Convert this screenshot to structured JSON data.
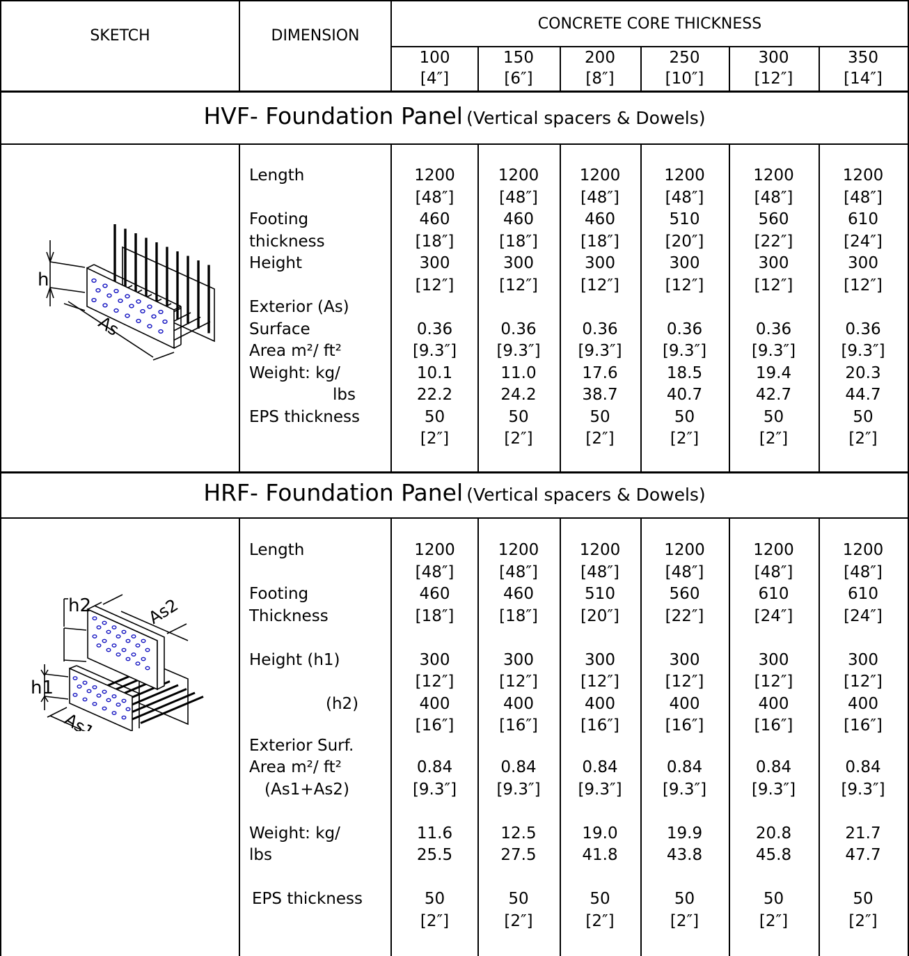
{
  "header": {
    "sketch": "SKETCH",
    "dimension": "DIMENSION",
    "core_thickness": "CONCRETE CORE THICKNESS",
    "thicknesses": [
      {
        "mm": "100",
        "in": "[4″]"
      },
      {
        "mm": "150",
        "in": "[6″]"
      },
      {
        "mm": "200",
        "in": "[8″]"
      },
      {
        "mm": "250",
        "in": "[10″]"
      },
      {
        "mm": "300",
        "in": "[12″]"
      },
      {
        "mm": "350",
        "in": "[14″]"
      }
    ]
  },
  "hvf": {
    "title": "HVF- Foundation Panel",
    "subtitle": "(Vertical spacers & Dowels)",
    "sketch_labels": {
      "h": "h",
      "as": "As"
    },
    "dim_lines": [
      {
        "text": "Length",
        "row": 0
      },
      {
        "text": "Footing",
        "row": 2
      },
      {
        "text": "thickness",
        "row": 3
      },
      {
        "text": "Height",
        "row": 4
      },
      {
        "text": "Exterior   (As)",
        "row": 6
      },
      {
        "text": "Surface",
        "row": 7
      },
      {
        "text": "Area m²/ ft²",
        "row": 8
      },
      {
        "text": "Weight: kg/",
        "row": 9
      },
      {
        "text": "lbs",
        "row": 10,
        "indent": true
      },
      {
        "text": "EPS thickness",
        "row": 11
      }
    ],
    "columns": [
      [
        "1200",
        "[48″]",
        "460",
        "[18″]",
        "300",
        "[12″]",
        "",
        "0.36",
        "[9.3″]",
        "10.1",
        "22.2",
        "50",
        "[2″]"
      ],
      [
        "1200",
        "[48″]",
        "460",
        "[18″]",
        "300",
        "[12″]",
        "",
        "0.36",
        "[9.3″]",
        "11.0",
        "24.2",
        "50",
        "[2″]"
      ],
      [
        "1200",
        "[48″]",
        "460",
        "[18″]",
        "300",
        "[12″]",
        "",
        "0.36",
        "[9.3″]",
        "17.6",
        "38.7",
        "50",
        "[2″]"
      ],
      [
        "1200",
        "[48″]",
        "510",
        "[20″]",
        "300",
        "[12″]",
        "",
        "0.36",
        "[9.3″]",
        "18.5",
        "40.7",
        "50",
        "[2″]"
      ],
      [
        "1200",
        "[48″]",
        "560",
        "[22″]",
        "300",
        "[12″]",
        "",
        "0.36",
        "[9.3″]",
        "19.4",
        "42.7",
        "50",
        "[2″]"
      ],
      [
        "1200",
        "[48″]",
        "610",
        "[24″]",
        "300",
        "[12″]",
        "",
        "0.36",
        "[9.3″]",
        "20.3",
        "44.7",
        "50",
        "[2″]"
      ]
    ]
  },
  "hrf": {
    "title": "HRF- Foundation Panel",
    "subtitle": "(Vertical spacers & Dowels)",
    "sketch_labels": {
      "h1": "h1",
      "h2": "h2",
      "as1": "As1",
      "as2": "As2"
    },
    "dim_lines": [
      {
        "text": "Length",
        "row": 0
      },
      {
        "text": "Footing",
        "row": 2
      },
      {
        "text": "Thickness",
        "row": 3
      },
      {
        "text": "Height  (h1)",
        "row": 5
      },
      {
        "text": "(h2)",
        "row": 7,
        "indent2": true
      },
      {
        "text": "Exterior Surf.",
        "row": 8.92
      },
      {
        "text": "Area m²/ ft²",
        "row": 9.92
      },
      {
        "text": "(As1+As2)",
        "row": 10.92,
        "indent3": true
      },
      {
        "text": "Weight: kg/",
        "row": 12.92
      },
      {
        "text": "lbs",
        "row": 13.92
      },
      {
        "text": "EPS thickness",
        "row": 15.92,
        "indent4": true
      }
    ],
    "columns": [
      {
        "values": [
          "1200",
          "[48″]",
          "460",
          "[18″]",
          "300",
          "[12″]",
          "400",
          "[16″]",
          "0.84",
          "[9.3″]",
          "11.6",
          "25.5",
          "50",
          "[2″]"
        ]
      },
      {
        "values": [
          "1200",
          "[48″]",
          "460",
          "[18″]",
          "300",
          "[12″]",
          "400",
          "[16″]",
          "0.84",
          "[9.3″]",
          "12.5",
          "27.5",
          "50",
          "[2″]"
        ]
      },
      {
        "values": [
          "1200",
          "[48″]",
          "510",
          "[20″]",
          "300",
          "[12″]",
          "400",
          "[16″]",
          "0.84",
          "[9.3″]",
          "19.0",
          "41.8",
          "50",
          "[2″]"
        ]
      },
      {
        "values": [
          "1200",
          "[48″]",
          "560",
          "[22″]",
          "300",
          "[12″]",
          "400",
          "[16″]",
          "0.84",
          "[9.3″]",
          "19.9",
          "43.8",
          "50",
          "[2″]"
        ]
      },
      {
        "values": [
          "1200",
          "[48″]",
          "610",
          "[24″]",
          "300",
          "[12″]",
          "400",
          "[16″]",
          "0.84",
          "[9.3″]",
          "20.8",
          "45.8",
          "50",
          "[2″]"
        ]
      },
      {
        "values": [
          "1200",
          "[48″]",
          "610",
          "[24″]",
          "300",
          "[12″]",
          "400",
          "[16″]",
          "0.84",
          "[9.3″]",
          "21.7",
          "47.7",
          "50",
          "[2″]"
        ]
      }
    ]
  },
  "colors": {
    "line": "#000000",
    "dot": "#1010c0"
  },
  "icons": [
    "hvf-panel-sketch",
    "hrf-panel-sketch"
  ]
}
